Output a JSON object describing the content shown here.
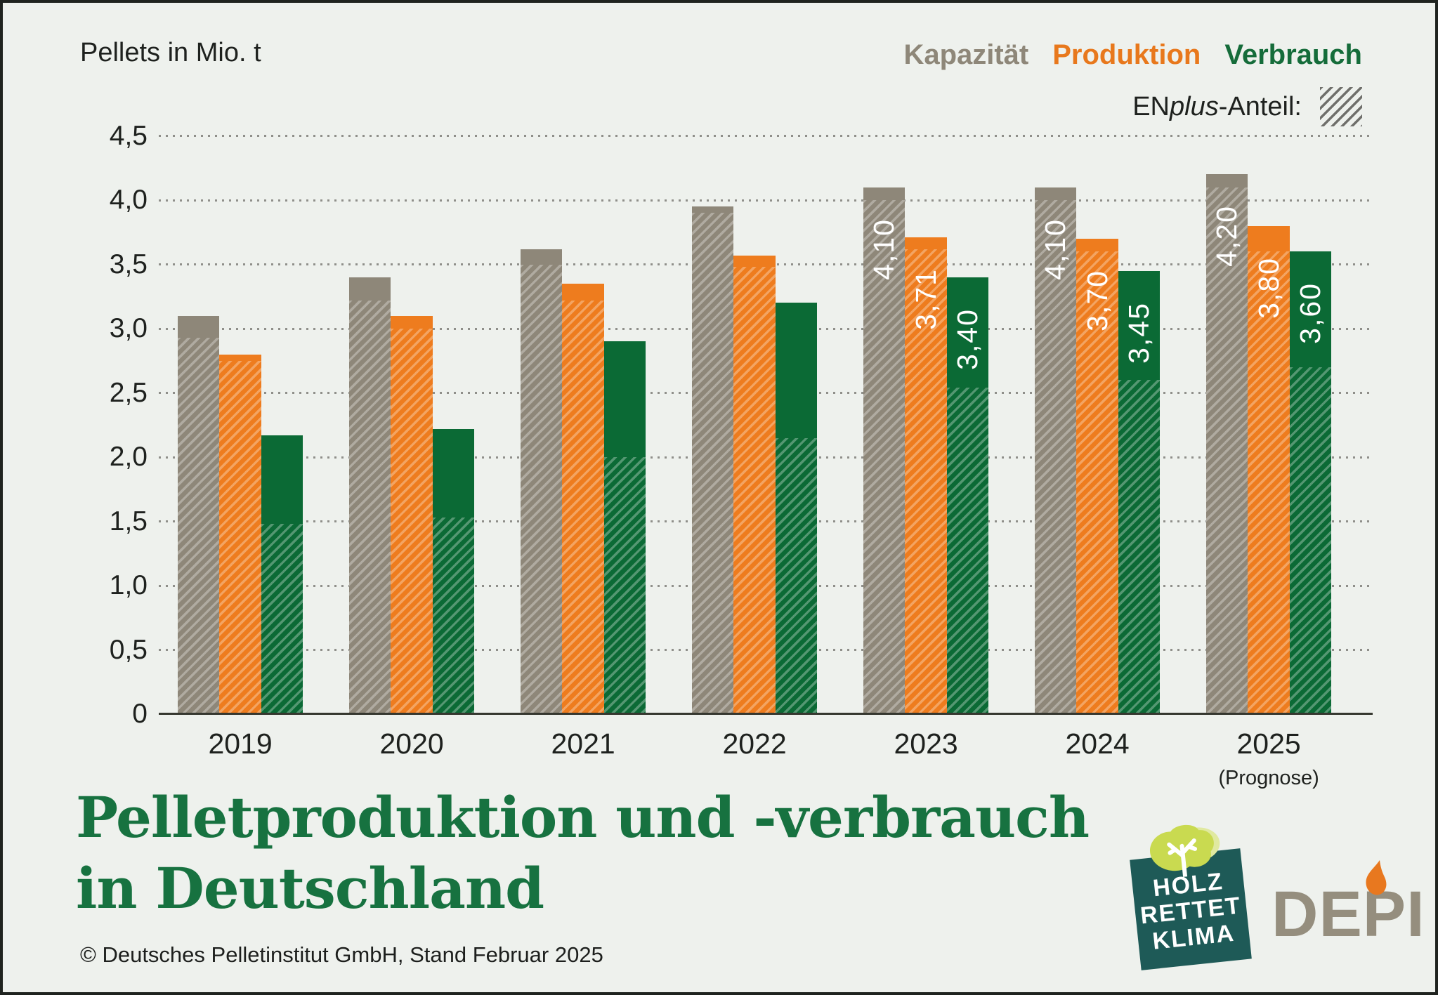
{
  "unit_label": "Pellets in Mio. t",
  "legend": {
    "items": [
      {
        "label": "Kapazität",
        "color": "#8e8779"
      },
      {
        "label": "Produktion",
        "color": "#ee7c1e"
      },
      {
        "label": "Verbrauch",
        "color": "#156c3a"
      }
    ],
    "enplus": {
      "prefix": "EN",
      "italic": "plus",
      "suffix": "-Anteil:"
    }
  },
  "chart_data": {
    "type": "bar",
    "title": "Pelletproduktion und -verbrauch in Deutschland",
    "ylabel": "Pellets in Mio. t",
    "ylim": [
      0,
      4.5
    ],
    "ytick_step": 0.5,
    "grid": "dotted horizontal lines at every 0,5",
    "legend_position": "top-right",
    "hatch_legend": "ENplus-Anteil",
    "categories": [
      "2019",
      "2020",
      "2021",
      "2022",
      "2023",
      "2024",
      "2025"
    ],
    "category_note": {
      "category": "2025",
      "label": "(Prognose)"
    },
    "yticks": [
      {
        "v": 4.5,
        "label": "4,5"
      },
      {
        "v": 4.0,
        "label": "4,0"
      },
      {
        "v": 3.5,
        "label": "3,5"
      },
      {
        "v": 3.0,
        "label": "3,0"
      },
      {
        "v": 2.5,
        "label": "2,5"
      },
      {
        "v": 2.0,
        "label": "2,0"
      },
      {
        "v": 1.5,
        "label": "1,5"
      },
      {
        "v": 1.0,
        "label": "1,0"
      },
      {
        "v": 0.5,
        "label": "0,5"
      },
      {
        "v": 0,
        "label": "0"
      }
    ],
    "series": [
      {
        "name": "Kapazität",
        "key": "kapazitaet",
        "color": "#8e8779",
        "values": [
          3.1,
          3.4,
          3.62,
          3.95,
          4.1,
          4.1,
          4.2
        ],
        "enplus_values": [
          2.93,
          3.22,
          3.5,
          3.9,
          4.0,
          4.0,
          4.1
        ],
        "bar_labels": [
          null,
          null,
          null,
          null,
          "4,10",
          "4,10",
          "4,20"
        ]
      },
      {
        "name": "Produktion",
        "key": "produktion",
        "color": "#ee7c1e",
        "values": [
          2.8,
          3.1,
          3.35,
          3.57,
          3.71,
          3.7,
          3.8
        ],
        "enplus_values": [
          2.75,
          3.0,
          3.22,
          3.48,
          3.62,
          3.6,
          3.6
        ],
        "bar_labels": [
          null,
          null,
          null,
          null,
          "3,71",
          "3,70",
          "3,80"
        ]
      },
      {
        "name": "Verbrauch",
        "key": "verbrauch",
        "color": "#0b6a35",
        "values": [
          2.17,
          2.22,
          2.9,
          3.2,
          3.4,
          3.45,
          3.6
        ],
        "enplus_values": [
          1.48,
          1.53,
          2.0,
          2.15,
          2.54,
          2.6,
          2.7
        ],
        "bar_labels": [
          null,
          null,
          null,
          null,
          "3,40",
          "3,45",
          "3,60"
        ]
      }
    ]
  },
  "title": {
    "line1": "Pelletproduktion und -verbrauch",
    "line2": "in Deutschland",
    "color": "#177240"
  },
  "footer": "© Deutsches Pelletinstitut GmbH, Stand Februar 2025",
  "logos": {
    "hrk": {
      "line1": "HOLZ",
      "line2": "RETTET",
      "line3": "KLIMA",
      "teal": "#1e5a57",
      "leaf": "#c9da50"
    },
    "depi": {
      "text": "DEPI",
      "gray": "#958e7e",
      "flame": "#e8781f"
    }
  }
}
